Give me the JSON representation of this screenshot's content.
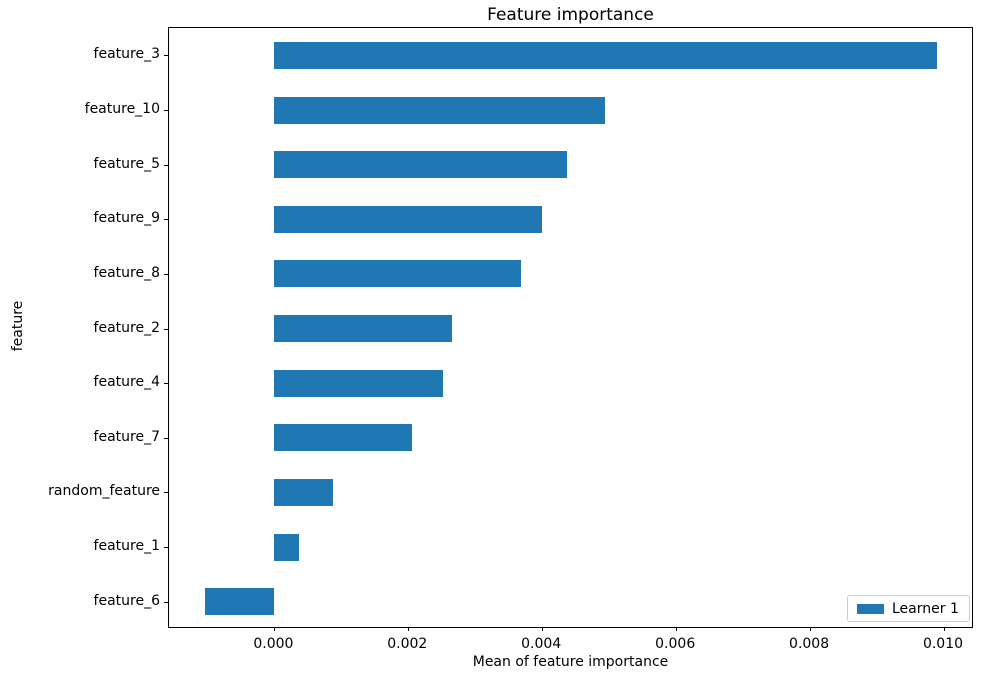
{
  "chart_data": {
    "type": "bar",
    "orientation": "horizontal",
    "title": "Feature importance",
    "xlabel": "Mean of feature importance",
    "ylabel": "feature",
    "categories_top_to_bottom": [
      "feature_3",
      "feature_10",
      "feature_5",
      "feature_9",
      "feature_8",
      "feature_2",
      "feature_4",
      "feature_7",
      "random_feature",
      "feature_1",
      "feature_6"
    ],
    "series": [
      {
        "name": "Learner 1",
        "color": "#1f77b4",
        "values": [
          0.0099,
          0.00494,
          0.00437,
          0.004,
          0.00368,
          0.00266,
          0.00252,
          0.00206,
          0.00088,
          0.00037,
          -0.00103
        ]
      }
    ],
    "x_ticks": [
      0.0,
      0.002,
      0.004,
      0.006,
      0.008,
      0.01
    ],
    "x_tick_labels": [
      "0.000",
      "0.002",
      "0.004",
      "0.006",
      "0.008",
      "0.010"
    ],
    "xlim": [
      -0.001574,
      0.010448
    ],
    "grid": false,
    "legend": {
      "position": "lower right",
      "entries": [
        "Learner 1"
      ]
    }
  }
}
